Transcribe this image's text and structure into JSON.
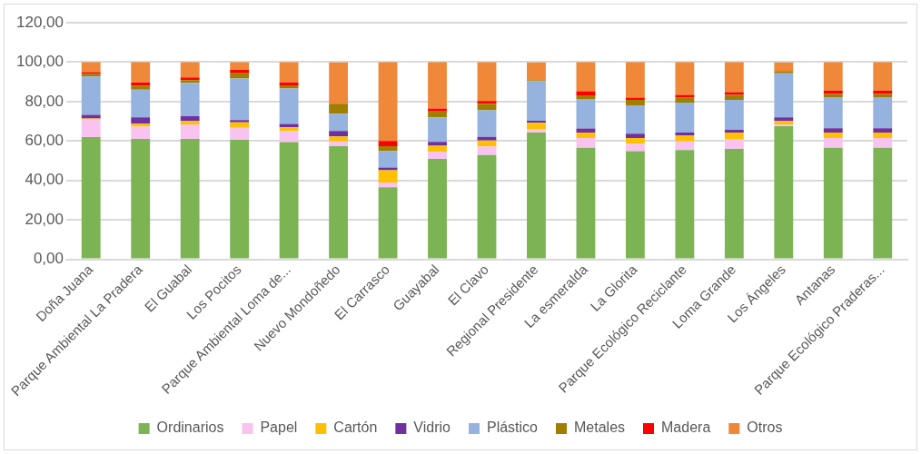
{
  "chart_data": {
    "type": "bar",
    "stacked": true,
    "categories": [
      "Doña Juana",
      "Parque Ambiental La Pradera",
      "El Guabal",
      "Los Pocitos",
      "Parque Ambiental Loma de...",
      "Nuevo Mondoñedo",
      "El Carrasco",
      "Guayabal",
      "El Clavo",
      "Regional Presidente",
      "La esmeralda",
      "La Glorita",
      "Parque Ecológico Reciclante",
      "Loma Grande",
      "Los Ángeles",
      "Antanas",
      "Parque Ecológico Praderas..."
    ],
    "series": [
      {
        "name": "Ordinarios",
        "color": "#7cb454",
        "values": [
          62,
          61.1,
          61.1,
          60.6,
          59.4,
          57.4,
          36.5,
          50.9,
          52.9,
          64.3,
          56.6,
          54.8,
          55.4,
          56,
          67.5,
          56.6,
          56.6
        ]
      },
      {
        "name": "Papel",
        "color": "#f9c3ef",
        "values": [
          8.8,
          6.2,
          7.3,
          6.1,
          5.7,
          2.4,
          2.4,
          3.7,
          4.3,
          1.8,
          4.9,
          3.8,
          4.4,
          5.1,
          0.9,
          4.9,
          4.9
        ]
      },
      {
        "name": "Cartón",
        "color": "#ffc000",
        "values": [
          0.6,
          1.5,
          1.8,
          2.7,
          1.8,
          2.5,
          6.3,
          3,
          3,
          3.1,
          2.8,
          2.9,
          3.1,
          3.2,
          1.8,
          2.8,
          2.8
        ]
      },
      {
        "name": "Vidrio",
        "color": "#7030a0",
        "values": [
          1.8,
          3.2,
          2.4,
          1.2,
          1.7,
          2.8,
          1.3,
          2,
          1.9,
          1,
          2,
          2.2,
          1.4,
          1.4,
          1.8,
          2.2,
          2.2
        ]
      },
      {
        "name": "Plástico",
        "color": "#95b3de",
        "values": [
          19.5,
          14,
          16.9,
          21.1,
          18,
          8.7,
          8.3,
          12.4,
          13.4,
          20.1,
          15,
          14.4,
          15.2,
          15.2,
          22.3,
          15.7,
          15.7
        ]
      },
      {
        "name": "Metales",
        "color": "#a07f00",
        "values": [
          1.4,
          2,
          1.4,
          3,
          1.6,
          5.1,
          2.6,
          3,
          3.4,
          0.6,
          1.9,
          2.8,
          2.5,
          2.5,
          1.2,
          1.6,
          1.6
        ]
      },
      {
        "name": "Madera",
        "color": "#ff0000",
        "values": [
          0.8,
          1.7,
          1.4,
          1.4,
          1.5,
          null,
          2.6,
          1.5,
          1.4,
          null,
          2,
          1.1,
          1.4,
          1.4,
          null,
          1.8,
          1.8
        ]
      },
      {
        "name": "Otros",
        "color": "#f0883a",
        "values": [
          5.1,
          10.3,
          7.7,
          3.9,
          10.3,
          20.9,
          40,
          23.5,
          19.7,
          8.9,
          14.8,
          18,
          16.6,
          15.2,
          4.3,
          14.4,
          14.4
        ]
      }
    ],
    "ylim": [
      0,
      120
    ],
    "yticks": [
      {
        "value": 0,
        "label": "0,00"
      },
      {
        "value": 20,
        "label": "20,00"
      },
      {
        "value": 40,
        "label": "40,00"
      },
      {
        "value": 60,
        "label": "60,00"
      },
      {
        "value": 80,
        "label": "80,00"
      },
      {
        "value": 100,
        "label": "100,00"
      },
      {
        "value": 120,
        "label": "120,00"
      }
    ],
    "grid": "y",
    "legend": "bottom"
  }
}
